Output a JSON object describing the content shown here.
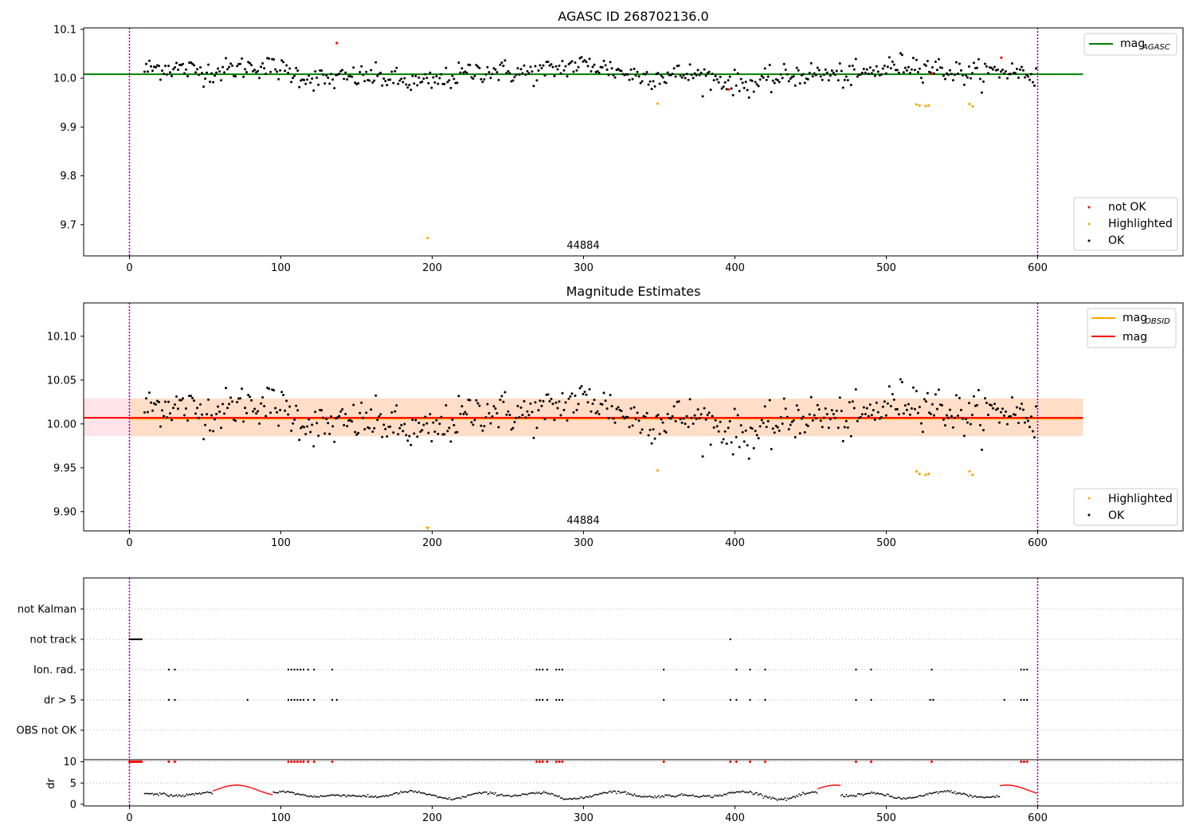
{
  "figure": {
    "title_top": "AGASC ID 268702136.0",
    "title_mid": "Magnitude Estimates",
    "obsid_label": "44884"
  },
  "colors": {
    "ok": "#000000",
    "not_ok": "#ff0000",
    "highlighted": "#ffa500",
    "mag_agasc": "#008000",
    "mag_obsid": "#ffa500",
    "mag": "#ff0000",
    "band_outer": "#ffc0cb",
    "band_inner": "#ffdab9",
    "obs_boundary": "#800080",
    "grid": "#b0b0b0"
  },
  "chart_data": [
    {
      "type": "scatter",
      "title": "AGASC ID 268702136.0",
      "xlabel": "",
      "ylabel": "",
      "xlim": [
        -30,
        693
      ],
      "ylim": [
        9.636,
        10.103
      ],
      "x_ticks": [
        0,
        100,
        200,
        300,
        400,
        500,
        600
      ],
      "y_ticks": [
        9.7,
        9.8,
        9.9,
        10.0,
        10.1
      ],
      "y_tick_labels": [
        "9.7",
        "9.8",
        "9.9",
        "10.0",
        "10.1"
      ],
      "hlines": [
        {
          "name": "mag_AGASC",
          "legend_main": "mag",
          "legend_sub": "AGASC",
          "y": 10.008,
          "x_range": [
            -30,
            630
          ],
          "color": "#008000"
        }
      ],
      "vlines": [
        0,
        600
      ],
      "annotations": [
        {
          "text": "44884",
          "x": 300,
          "y": 9.66
        }
      ],
      "legends": [
        {
          "placement": "upper-right",
          "entries": [
            "mag_AGASC"
          ]
        },
        {
          "placement": "lower-right",
          "entries": [
            "not OK",
            "Highlighted",
            "OK"
          ]
        }
      ],
      "series": [
        {
          "name": "not OK",
          "points": [
            [
              137,
              10.072
            ],
            [
              396,
              9.977
            ],
            [
              576,
              10.042
            ],
            [
              530,
              10.009
            ]
          ]
        },
        {
          "name": "Highlighted",
          "points": [
            [
              197,
              9.673
            ],
            [
              349,
              9.948
            ],
            [
              520,
              9.946
            ],
            [
              522,
              9.944
            ],
            [
              526,
              9.943
            ],
            [
              528,
              9.944
            ],
            [
              555,
              9.947
            ],
            [
              557,
              9.942
            ]
          ]
        },
        {
          "name": "OK",
          "x_range": [
            10,
            600
          ],
          "mean": 10.008,
          "count": 560,
          "note_generated": false
        }
      ]
    },
    {
      "type": "scatter",
      "title": "Magnitude Estimates",
      "xlabel": "",
      "ylabel": "",
      "xlim": [
        -30,
        693
      ],
      "ylim": [
        9.878,
        10.138
      ],
      "x_ticks": [
        0,
        100,
        200,
        300,
        400,
        500,
        600
      ],
      "y_ticks": [
        9.9,
        9.95,
        10.0,
        10.05,
        10.1
      ],
      "y_tick_labels": [
        "9.90",
        "9.95",
        "10.00",
        "10.05",
        "10.10"
      ],
      "hlines": [
        {
          "name": "mag_OBSID",
          "legend_main": "mag",
          "legend_sub": "OBSID",
          "y": 10.006,
          "x_range": [
            0,
            630
          ],
          "color": "#ffa500"
        },
        {
          "name": "mag",
          "legend_main": "mag",
          "legend_sub": "",
          "y": 10.007,
          "x_range": [
            -30,
            630
          ],
          "color": "#ff0000"
        }
      ],
      "bands": [
        {
          "y_range": [
            9.986,
            10.029
          ],
          "x_range": [
            -30,
            630
          ],
          "color": "#ffc0cb"
        },
        {
          "y_range": [
            9.986,
            10.029
          ],
          "x_range": [
            0,
            630
          ],
          "color": "#ffdab9"
        }
      ],
      "vlines": [
        0,
        600
      ],
      "annotations": [
        {
          "text": "44884",
          "x": 300,
          "y": 9.887
        }
      ],
      "legends": [
        {
          "placement": "upper-right",
          "entries": [
            "mag_OBSID",
            "mag"
          ]
        },
        {
          "placement": "lower-right",
          "entries": [
            "Highlighted",
            "OK"
          ]
        }
      ],
      "series": [
        {
          "name": "Highlighted",
          "points": [
            [
              197,
              9.88
            ],
            [
              349,
              9.947
            ],
            [
              520,
              9.946
            ],
            [
              522,
              9.943
            ],
            [
              526,
              9.942
            ],
            [
              528,
              9.943
            ],
            [
              555,
              9.946
            ],
            [
              557,
              9.942
            ]
          ]
        },
        {
          "name": "OK",
          "x_range": [
            10,
            600
          ],
          "mean": 10.008,
          "count": 560
        }
      ]
    },
    {
      "type": "scatter",
      "title": "",
      "xlabel": "",
      "ylabel": "",
      "xlim": [
        -30,
        693
      ],
      "x_ticks": [
        0,
        100,
        200,
        300,
        400,
        500,
        600
      ],
      "categories": [
        "not Kalman",
        "not track",
        "Ion. rad.",
        "dr > 5",
        "OBS not OK"
      ],
      "vlines": [
        0,
        600
      ],
      "series": [
        {
          "name": "not track",
          "x": [
            0,
            1,
            2,
            3,
            4,
            5,
            6,
            7,
            8,
            397
          ]
        },
        {
          "name": "Ion. rad.",
          "x": [
            26,
            30,
            105,
            107,
            109,
            111,
            113,
            115,
            118,
            122,
            134,
            269,
            271,
            273,
            276,
            282,
            284,
            286,
            353,
            401,
            410,
            420,
            480,
            490,
            530,
            589,
            591,
            593
          ]
        },
        {
          "name": "dr > 5",
          "x": [
            0,
            26,
            30,
            78,
            105,
            107,
            109,
            111,
            113,
            115,
            118,
            122,
            134,
            137,
            269,
            271,
            273,
            276,
            282,
            284,
            286,
            353,
            397,
            401,
            410,
            420,
            480,
            490,
            529,
            531,
            578,
            589,
            591,
            593
          ]
        },
        {
          "name": "not Kalman",
          "x": []
        },
        {
          "name": "OBS not OK",
          "x": []
        }
      ]
    },
    {
      "type": "scatter",
      "title": "",
      "xlabel": "",
      "ylabel": "dr",
      "xlim": [
        -30,
        693
      ],
      "ylim": [
        -0.4,
        10.5
      ],
      "x_ticks": [
        0,
        100,
        200,
        300,
        400,
        500,
        600
      ],
      "y_ticks": [
        0,
        5,
        10
      ],
      "y_tick_labels": [
        "0",
        "5",
        "10"
      ],
      "vlines": [
        0,
        600
      ],
      "series": [
        {
          "name": "dr > 5 clipped",
          "x": [
            0,
            1,
            2,
            3,
            4,
            5,
            6,
            7,
            8,
            26,
            30,
            105,
            107,
            109,
            111,
            113,
            115,
            118,
            122,
            134,
            269,
            271,
            273,
            276,
            282,
            284,
            286,
            353,
            397,
            401,
            410,
            420,
            480,
            490,
            530,
            589,
            591,
            593
          ],
          "y": 10
        }
      ]
    }
  ]
}
